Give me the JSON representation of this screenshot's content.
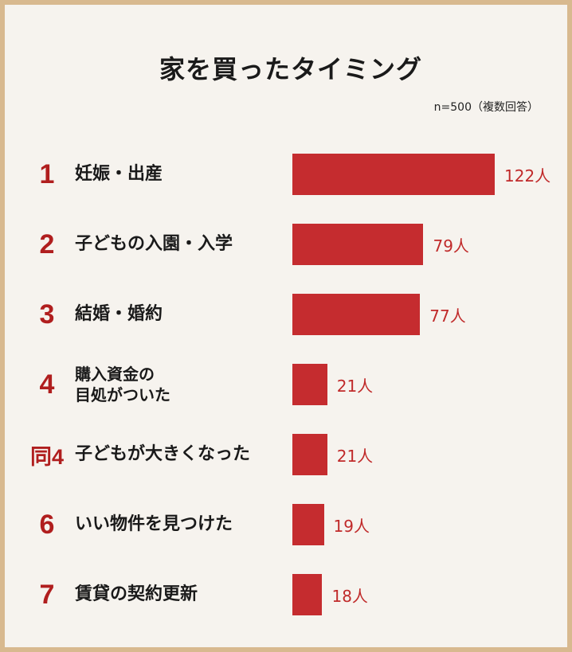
{
  "title": "家を買ったタイミング",
  "note": "n=500（複数回答）",
  "colors": {
    "bar": "#c52c2f",
    "rank": "#b01e1e",
    "value": "#c02a2a",
    "border": "#d8b98f",
    "background": "#f6f3ee"
  },
  "rows": [
    {
      "rank": "1",
      "label": "妊娠・出産",
      "value_text": "122人"
    },
    {
      "rank": "2",
      "label": "子どもの入園・入学",
      "value_text": "79人"
    },
    {
      "rank": "3",
      "label": "結婚・婚約",
      "value_text": "77人"
    },
    {
      "rank": "4",
      "label": "購入資金の\n目処がついた",
      "value_text": "21人"
    },
    {
      "rank": "同4",
      "label": "子どもが大きくなった",
      "value_text": "21人"
    },
    {
      "rank": "6",
      "label": "いい物件を見つけた",
      "value_text": "19人"
    },
    {
      "rank": "7",
      "label": "賃貸の契約更新",
      "value_text": "18人"
    }
  ],
  "chart_data": {
    "type": "bar",
    "orientation": "horizontal",
    "title": "家を買ったタイミング",
    "categories": [
      "妊娠・出産",
      "子どもの入園・入学",
      "結婚・婚約",
      "購入資金の目処がついた",
      "子どもが大きくなった",
      "いい物件を見つけた",
      "賃貸の契約更新"
    ],
    "values": [
      122,
      79,
      77,
      21,
      21,
      19,
      18
    ],
    "unit": "人",
    "annotation": "n=500（複数回答）",
    "grid": false,
    "legend": "none"
  }
}
